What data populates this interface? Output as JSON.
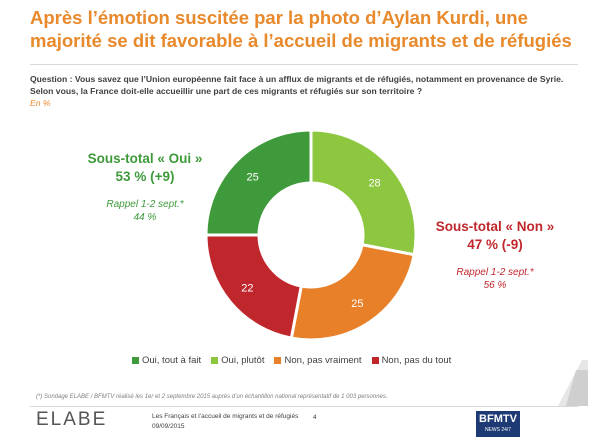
{
  "header": {
    "title_line1": "Après l’émotion suscitée par la photo d’Aylan Kurdi, une",
    "title_line2": "majorité se dit favorable à l’accueil de migrants et de réfugiés",
    "question": "Question : Vous savez que l’Union européenne fait face à un afflux de migrants et de réfugiés, notamment en provenance de Syrie. Selon vous, la France doit-elle accueillir une part de ces migrants et réfugiés sur son territoire ?",
    "unit": "En %"
  },
  "subtotals": {
    "oui": {
      "label": "Sous-total « Oui »",
      "value": "53 % (+9)",
      "recall_label": "Rappel 1-2 sept.*",
      "recall_value": "44 %"
    },
    "non": {
      "label": "Sous-total « Non »",
      "value": "47 % (-9)",
      "recall_label": "Rappel 1-2 sept.*",
      "recall_value": "56 %"
    }
  },
  "chart_data": {
    "type": "pie",
    "donut": true,
    "series": [
      {
        "name": "Oui, plutôt",
        "value": 28,
        "color": "#8dc63f"
      },
      {
        "name": "Non, pas vraiment",
        "value": 25,
        "color": "#e8802a"
      },
      {
        "name": "Non, pas du tout",
        "value": 22,
        "color": "#c0272d"
      },
      {
        "name": "Oui, tout à fait",
        "value": 25,
        "color": "#3e9a3a"
      }
    ],
    "legend": [
      {
        "name": "Oui, tout à fait",
        "color": "#3e9a3a"
      },
      {
        "name": "Oui, plutôt",
        "color": "#8dc63f"
      },
      {
        "name": "Non, pas vraiment",
        "color": "#e8802a"
      },
      {
        "name": "Non, pas du tout",
        "color": "#c0272d"
      }
    ],
    "legend_position": "bottom"
  },
  "footer": {
    "footnote": "(*) Sondage ELABE / BFMTV réalisé les 1er et 2 septembre 2015 auprès d’un échantillon national représentatif de 1 003 personnes.",
    "logo": "ELABE",
    "doc_title": "Les Français et l’accueil de migrants et de réfugiés",
    "date": "09/09/2015",
    "page": "4",
    "partner_logo": "BFMTV",
    "partner_tagline": "NEWS 24/7"
  }
}
